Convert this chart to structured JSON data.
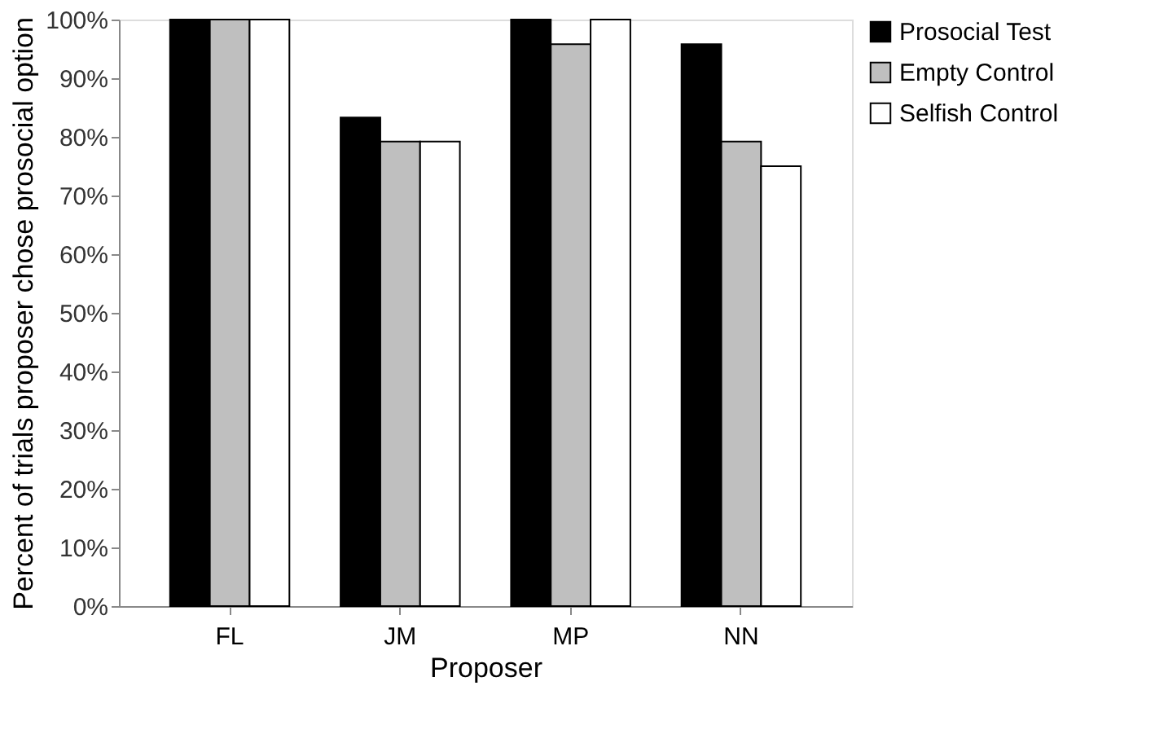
{
  "chart_data": {
    "type": "bar",
    "xlabel": "Proposer",
    "ylabel": "Percent of trials proposer chose prosocial option",
    "categories": [
      "FL",
      "JM",
      "MP",
      "NN"
    ],
    "series": [
      {
        "name": "Prosocial Test",
        "color": "#000000",
        "values": [
          100,
          83.3,
          100,
          95.8
        ]
      },
      {
        "name": "Empty Control",
        "color": "#bfbfbf",
        "values": [
          100,
          79.2,
          95.8,
          79.2
        ]
      },
      {
        "name": "Selfish Control",
        "color": "#ffffff",
        "values": [
          100,
          79.2,
          100,
          75
        ]
      }
    ],
    "ylim": [
      0,
      100
    ],
    "yticks": [
      {
        "value": 0,
        "label": "0%"
      },
      {
        "value": 10,
        "label": "10%"
      },
      {
        "value": 20,
        "label": "20%"
      },
      {
        "value": 30,
        "label": "30%"
      },
      {
        "value": 40,
        "label": "40%"
      },
      {
        "value": 50,
        "label": "50%"
      },
      {
        "value": 60,
        "label": "60%"
      },
      {
        "value": 70,
        "label": "70%"
      },
      {
        "value": 80,
        "label": "80%"
      },
      {
        "value": 90,
        "label": "90%"
      },
      {
        "value": 100,
        "label": "100%"
      }
    ],
    "grid": false,
    "legend": "top right"
  }
}
